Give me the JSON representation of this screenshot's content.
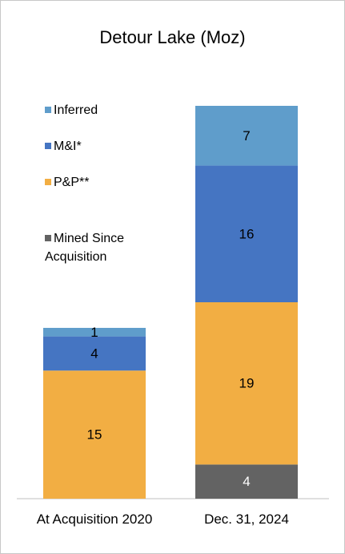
{
  "chart_data": {
    "type": "stacked-bar",
    "title": "Detour Lake (Moz)",
    "categories": [
      "At Acquisition 2020",
      "Dec. 31, 2024"
    ],
    "series": [
      {
        "name": "Inferred",
        "color": "#5f9dcb",
        "values": [
          1,
          7
        ]
      },
      {
        "name": "M&I*",
        "color": "#4575c2",
        "values": [
          4,
          16
        ]
      },
      {
        "name": "P&P**",
        "color": "#f2ae43",
        "values": [
          15,
          19
        ]
      },
      {
        "name": "Mined Since Acquisition",
        "color": "#636363",
        "values": [
          null,
          4
        ]
      }
    ],
    "legend": "left"
  }
}
